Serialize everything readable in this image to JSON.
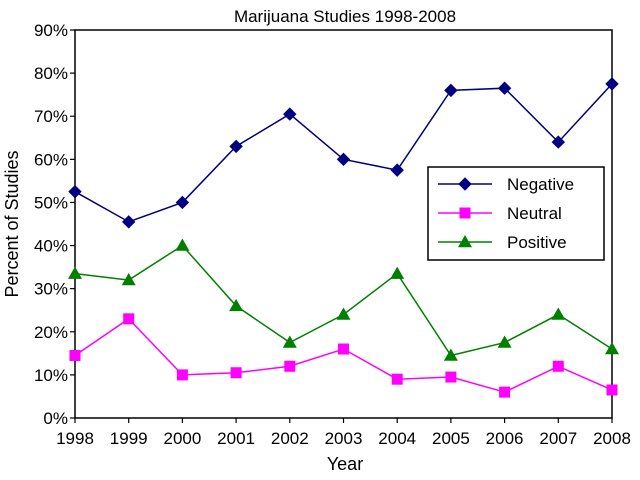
{
  "chart_data": {
    "type": "line",
    "title": "Marijuana Studies 1998-2008",
    "xlabel": "Year",
    "ylabel": "Percent of Studies",
    "categories": [
      "1998",
      "1999",
      "2000",
      "2001",
      "2002",
      "2003",
      "2004",
      "2005",
      "2006",
      "2007",
      "2008"
    ],
    "ylim": [
      0,
      90
    ],
    "y_ticks": [
      "0%",
      "10%",
      "20%",
      "30%",
      "40%",
      "50%",
      "60%",
      "70%",
      "80%",
      "90%"
    ],
    "grid": false,
    "legend_position": "right",
    "series": [
      {
        "name": "Negative",
        "color": "#000080",
        "marker": "diamond",
        "values": [
          52.5,
          45.5,
          50,
          63,
          70.5,
          60,
          57.5,
          76,
          76.5,
          64,
          77.5
        ]
      },
      {
        "name": "Neutral",
        "color": "#ff00ff",
        "marker": "square",
        "values": [
          14.5,
          23,
          10,
          10.5,
          12,
          16,
          9,
          9.5,
          6,
          12,
          6.5
        ]
      },
      {
        "name": "Positive",
        "color": "#008000",
        "marker": "triangle",
        "values": [
          33.5,
          32,
          40,
          26,
          17.5,
          24,
          33.5,
          14.5,
          17.5,
          24,
          16
        ]
      }
    ]
  }
}
